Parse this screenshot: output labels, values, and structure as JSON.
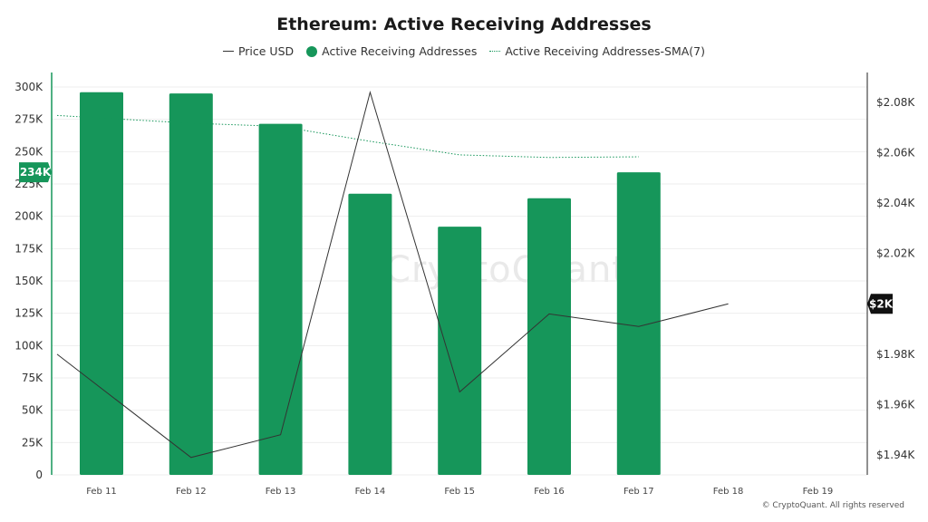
{
  "title": "Ethereum: Active Receiving Addresses",
  "legend": [
    {
      "label": "Price USD",
      "marker": "line"
    },
    {
      "label": "Active Receiving Addresses",
      "marker": "dot"
    },
    {
      "label": "Active Receiving Addresses-SMA(7)",
      "marker": "dotted"
    }
  ],
  "watermark": "CryptoQuant",
  "copyright": "© CryptoQuant. All rights reserved",
  "colors": {
    "bar": "#16965a",
    "price": "#333333",
    "sma": "#16965a",
    "grid": "#eeeeee",
    "axis_left": "#16965a"
  },
  "chart_data": {
    "type": "bar",
    "categories": [
      "Feb 11",
      "Feb 12",
      "Feb 13",
      "Feb 14",
      "Feb 15",
      "Feb 16",
      "Feb 17",
      "Feb 18",
      "Feb 19"
    ],
    "series": [
      {
        "name": "Active Receiving Addresses",
        "type": "bar",
        "axis": "left",
        "values": [
          296000,
          295000,
          271500,
          217500,
          192000,
          214000,
          234000,
          null,
          null
        ]
      },
      {
        "name": "Active Receiving Addresses-SMA(7)",
        "type": "line",
        "style": "dotted",
        "axis": "left",
        "values": [
          278000,
          272000,
          269500,
          258000,
          247500,
          245500,
          246000,
          null,
          null
        ]
      },
      {
        "name": "Price USD",
        "type": "line",
        "axis": "right",
        "values": [
          1980,
          1939,
          1948,
          2084,
          1965,
          1996,
          1991,
          2000,
          null
        ]
      }
    ],
    "y_left": {
      "min": 0,
      "max": 300000,
      "ticks": [
        0,
        25000,
        50000,
        75000,
        100000,
        125000,
        150000,
        175000,
        200000,
        225000,
        250000,
        275000,
        300000
      ],
      "tick_labels": [
        "0",
        "25K",
        "50K",
        "75K",
        "100K",
        "125K",
        "150K",
        "175K",
        "200K",
        "225K",
        "250K",
        "275K",
        "300K"
      ]
    },
    "y_right": {
      "min": 1935,
      "max": 2094,
      "ticks": [
        1940,
        1960,
        1980,
        2000,
        2020,
        2040,
        2060,
        2080
      ],
      "tick_labels": [
        "$1.94K",
        "$1.96K",
        "$1.98K",
        "",
        "$2.02K",
        "$2.04K",
        "$2.06K",
        "$2.08K"
      ]
    },
    "current_value_labels": {
      "left": "234K",
      "right": "$2K"
    },
    "grid": true
  }
}
